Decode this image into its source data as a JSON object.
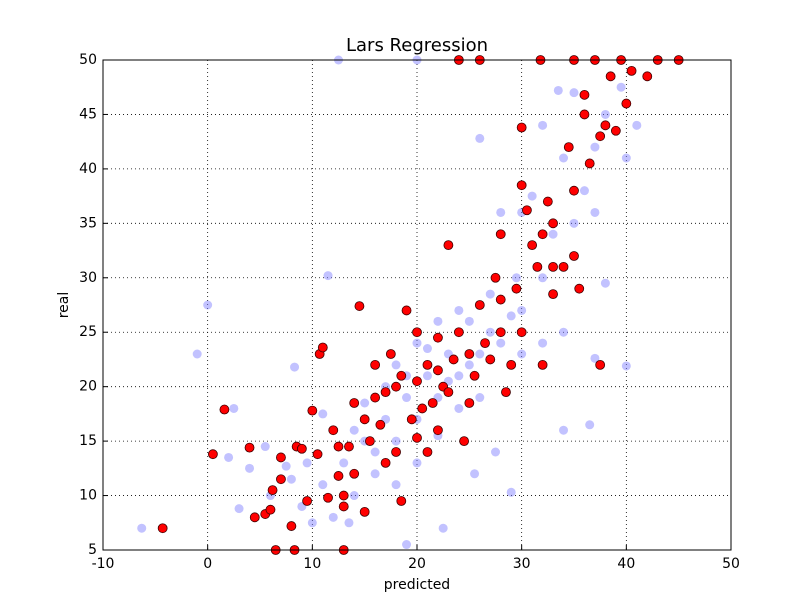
{
  "chart_data": {
    "type": "scatter",
    "title": "Lars Regression",
    "x_label": "predicted",
    "y_label": "real",
    "xlim": [
      -10,
      50
    ],
    "ylim": [
      5,
      50
    ],
    "xticks": [
      -10,
      0,
      10,
      20,
      30,
      40,
      50
    ],
    "yticks": [
      5,
      10,
      15,
      20,
      25,
      30,
      35,
      40,
      45,
      50
    ],
    "grid": true,
    "series": [
      {
        "color": "#7777ff",
        "x": [
          -6.3,
          -1,
          0,
          2.5,
          3,
          5.5,
          7.5,
          8.3,
          9.5,
          11.5,
          12.5,
          13.5,
          19,
          20,
          22.5,
          24,
          25.5,
          26,
          27.5,
          29,
          34,
          36.5,
          37,
          40,
          39.5,
          35,
          33.5,
          34,
          30,
          29.5,
          27,
          25,
          23,
          21,
          19,
          17,
          15,
          13,
          11,
          9,
          18,
          20,
          22,
          24,
          26,
          28,
          30,
          32,
          31,
          33,
          35,
          36,
          37,
          38,
          26,
          24,
          18,
          16,
          14,
          12,
          10,
          20,
          22,
          21,
          23,
          25,
          27,
          29,
          19,
          17,
          15,
          14,
          16,
          20,
          22,
          18,
          28,
          31,
          32,
          38,
          34,
          32,
          30,
          11,
          4,
          2,
          8,
          6,
          37,
          40,
          41
        ],
        "values": [
          7,
          23,
          27.5,
          18,
          8.8,
          14.5,
          12.7,
          21.8,
          13,
          30.2,
          50,
          7.5,
          5.5,
          50,
          7,
          27,
          12,
          42.8,
          14,
          10.3,
          16,
          16.5,
          22.6,
          21.9,
          47.5,
          47,
          47.2,
          41,
          36,
          30,
          28.5,
          26,
          23,
          21,
          19,
          17,
          15,
          13,
          11,
          9,
          22,
          17,
          19,
          21,
          23,
          24,
          27,
          30,
          33,
          34,
          35,
          38,
          42,
          45,
          19,
          18,
          15,
          12,
          10,
          8,
          7.5,
          24,
          26,
          23.5,
          20.5,
          22,
          25,
          26.5,
          21,
          20,
          18.5,
          16,
          14,
          13,
          15.5,
          11,
          36,
          37.5,
          44,
          29.5,
          25,
          24,
          23,
          17.5,
          12.5,
          13.5,
          11.5,
          10,
          36,
          41,
          44
        ]
      },
      {
        "color": "#ff0000",
        "x": [
          -4.3,
          0.5,
          1.6,
          4,
          4.5,
          5.5,
          6,
          6.2,
          7,
          7,
          6.5,
          8,
          8.3,
          8.5,
          9,
          9.5,
          10,
          10.5,
          10.7,
          11,
          11.5,
          12,
          12.5,
          13,
          13,
          13.5,
          14,
          14,
          14.5,
          15,
          15.5,
          16,
          16,
          16.5,
          17,
          17.5,
          18,
          18,
          18.5,
          19,
          19.5,
          20,
          20,
          20.5,
          21,
          21,
          21.5,
          22,
          22,
          22.5,
          23,
          23,
          23.5,
          24,
          24,
          24.5,
          25,
          25,
          25.5,
          26,
          26,
          26.5,
          27,
          27.5,
          28,
          28,
          28.5,
          29,
          29.5,
          30,
          30,
          30,
          30.5,
          31,
          31.5,
          32,
          32,
          32.5,
          33,
          33,
          34,
          34.5,
          35,
          35,
          35.5,
          36,
          36.5,
          37,
          37.5,
          37.5,
          38,
          38.5,
          39,
          39.5,
          40,
          40.5,
          42,
          43,
          45,
          35,
          36,
          31.8,
          22,
          20,
          18.5,
          17,
          15,
          12.5,
          13,
          28,
          33
        ],
        "values": [
          7,
          13.8,
          17.9,
          14.4,
          8,
          8.3,
          8.7,
          10.5,
          13.5,
          11.5,
          5,
          7.2,
          5,
          14.5,
          14.3,
          9.5,
          17.8,
          13.8,
          23,
          23.6,
          9.8,
          16,
          11.8,
          10,
          5,
          14.5,
          18.5,
          12,
          27.4,
          8.5,
          15,
          22,
          19,
          16.5,
          13,
          23,
          20,
          14,
          9.5,
          27,
          17,
          25,
          20.5,
          18,
          22,
          14,
          18.5,
          21.5,
          24.5,
          20,
          33,
          19.5,
          22.5,
          25,
          50,
          15,
          23,
          18.5,
          21,
          50,
          27.5,
          24,
          22.5,
          30,
          28,
          25,
          19.5,
          22,
          29,
          43.8,
          38.5,
          25,
          36.2,
          33,
          31,
          22,
          34,
          37,
          28.5,
          35,
          31,
          42,
          38,
          32,
          29,
          45,
          40.5,
          50,
          43,
          22,
          44,
          48.5,
          43.5,
          50,
          46,
          49,
          48.5,
          50,
          50,
          50,
          46.8,
          50,
          16,
          15.3,
          21,
          19.5,
          17,
          14.5,
          9,
          34,
          31
        ]
      }
    ]
  }
}
